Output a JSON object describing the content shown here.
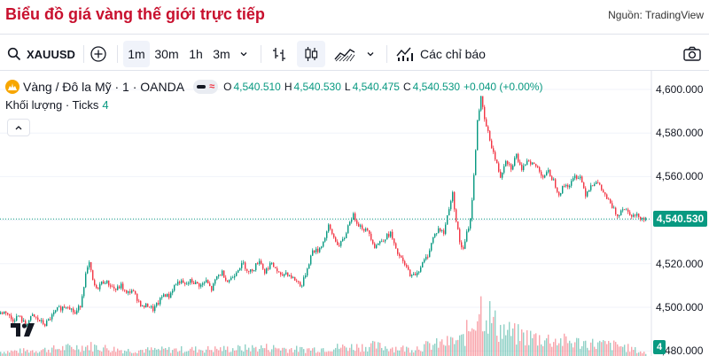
{
  "header": {
    "title": "Biểu đồ giá vàng thế giới trực tiếp",
    "source": "Nguồn: TradingView"
  },
  "toolbar": {
    "symbol": "XAUUSD",
    "intervals": [
      "1m",
      "30m",
      "1h",
      "3m"
    ],
    "active_interval": "1m",
    "indicators_label": "Các chỉ báo",
    "icons": [
      "search-icon",
      "add-symbol-icon",
      "chevron-down-icon",
      "bar-chart-icon",
      "candlestick-icon",
      "area-chart-icon",
      "indicators-icon",
      "camera-icon"
    ]
  },
  "legend": {
    "instrument": "Vàng / Đô la Mỹ · 1 · OANDA",
    "open_key": "O",
    "open": "4,540.510",
    "high_key": "H",
    "high": "4,540.530",
    "low_key": "L",
    "low": "4,540.475",
    "close_key": "C",
    "close": "4,540.530",
    "change": "+0.040 (+0.00%)",
    "volume_label": "Khối lượng · Ticks",
    "volume_value": "4"
  },
  "colors": {
    "up": "#089981",
    "down": "#f23645",
    "title": "#c8102e",
    "brand": "#f7a600"
  },
  "chart_data": {
    "type": "candlestick",
    "y_axis_ticks": [
      "4,600.000",
      "4,580.000",
      "4,560.000",
      "4,540.000",
      "4,520.000",
      "4,500.000",
      "4,480.000"
    ],
    "ylim": [
      4480,
      4605
    ],
    "current_price": "4,540.530",
    "current_volume": "4",
    "price_path": [
      [
        0,
        4497
      ],
      [
        8,
        4498
      ],
      [
        15,
        4494
      ],
      [
        22,
        4496
      ],
      [
        30,
        4492
      ],
      [
        38,
        4496
      ],
      [
        45,
        4494
      ],
      [
        52,
        4492
      ],
      [
        60,
        4496
      ],
      [
        66,
        4499
      ],
      [
        72,
        4500
      ],
      [
        78,
        4501
      ],
      [
        86,
        4497
      ],
      [
        92,
        4501
      ],
      [
        98,
        4515
      ],
      [
        102,
        4520
      ],
      [
        106,
        4512
      ],
      [
        110,
        4508
      ],
      [
        115,
        4511
      ],
      [
        120,
        4512
      ],
      [
        126,
        4510
      ],
      [
        132,
        4508
      ],
      [
        138,
        4510
      ],
      [
        144,
        4506
      ],
      [
        150,
        4508
      ],
      [
        156,
        4504
      ],
      [
        162,
        4500
      ],
      [
        168,
        4501
      ],
      [
        174,
        4499
      ],
      [
        180,
        4502
      ],
      [
        186,
        4506
      ],
      [
        192,
        4505
      ],
      [
        198,
        4510
      ],
      [
        204,
        4512
      ],
      [
        210,
        4510
      ],
      [
        216,
        4512
      ],
      [
        222,
        4511
      ],
      [
        228,
        4510
      ],
      [
        234,
        4512
      ],
      [
        240,
        4508
      ],
      [
        246,
        4514
      ],
      [
        252,
        4516
      ],
      [
        258,
        4512
      ],
      [
        264,
        4514
      ],
      [
        270,
        4518
      ],
      [
        276,
        4520
      ],
      [
        282,
        4516
      ],
      [
        288,
        4518
      ],
      [
        294,
        4522
      ],
      [
        300,
        4516
      ],
      [
        306,
        4520
      ],
      [
        312,
        4518
      ],
      [
        318,
        4514
      ],
      [
        324,
        4516
      ],
      [
        330,
        4514
      ],
      [
        336,
        4512
      ],
      [
        342,
        4510
      ],
      [
        348,
        4518
      ],
      [
        354,
        4526
      ],
      [
        360,
        4526
      ],
      [
        366,
        4530
      ],
      [
        372,
        4537
      ],
      [
        378,
        4532
      ],
      [
        384,
        4528
      ],
      [
        390,
        4532
      ],
      [
        396,
        4540
      ],
      [
        400,
        4542
      ],
      [
        406,
        4538
      ],
      [
        412,
        4536
      ],
      [
        418,
        4534
      ],
      [
        424,
        4528
      ],
      [
        430,
        4530
      ],
      [
        436,
        4532
      ],
      [
        442,
        4534
      ],
      [
        448,
        4526
      ],
      [
        454,
        4522
      ],
      [
        460,
        4518
      ],
      [
        466,
        4514
      ],
      [
        472,
        4516
      ],
      [
        478,
        4520
      ],
      [
        484,
        4524
      ],
      [
        490,
        4532
      ],
      [
        496,
        4536
      ],
      [
        502,
        4534
      ],
      [
        508,
        4546
      ],
      [
        512,
        4552
      ],
      [
        516,
        4540
      ],
      [
        520,
        4530
      ],
      [
        524,
        4526
      ],
      [
        528,
        4534
      ],
      [
        532,
        4540
      ],
      [
        536,
        4560
      ],
      [
        540,
        4586
      ],
      [
        544,
        4596
      ],
      [
        548,
        4586
      ],
      [
        552,
        4580
      ],
      [
        556,
        4574
      ],
      [
        560,
        4568
      ],
      [
        566,
        4560
      ],
      [
        572,
        4568
      ],
      [
        578,
        4564
      ],
      [
        584,
        4570
      ],
      [
        590,
        4562
      ],
      [
        596,
        4568
      ],
      [
        602,
        4566
      ],
      [
        608,
        4564
      ],
      [
        614,
        4560
      ],
      [
        620,
        4562
      ],
      [
        626,
        4558
      ],
      [
        632,
        4552
      ],
      [
        638,
        4556
      ],
      [
        644,
        4556
      ],
      [
        650,
        4560
      ],
      [
        656,
        4560
      ],
      [
        662,
        4552
      ],
      [
        668,
        4556
      ],
      [
        674,
        4558
      ],
      [
        680,
        4554
      ],
      [
        686,
        4550
      ],
      [
        692,
        4546
      ],
      [
        698,
        4542
      ],
      [
        704,
        4546
      ],
      [
        710,
        4544
      ],
      [
        716,
        4542
      ],
      [
        722,
        4542
      ],
      [
        728,
        4540.5
      ]
    ],
    "volume_profile": [
      [
        0,
        6
      ],
      [
        40,
        8
      ],
      [
        80,
        12
      ],
      [
        100,
        14
      ],
      [
        140,
        8
      ],
      [
        200,
        9
      ],
      [
        260,
        10
      ],
      [
        300,
        12
      ],
      [
        340,
        9
      ],
      [
        380,
        12
      ],
      [
        420,
        14
      ],
      [
        460,
        10
      ],
      [
        500,
        18
      ],
      [
        520,
        22
      ],
      [
        530,
        40
      ],
      [
        540,
        72
      ],
      [
        550,
        60
      ],
      [
        560,
        40
      ],
      [
        580,
        30
      ],
      [
        600,
        26
      ],
      [
        640,
        20
      ],
      [
        680,
        16
      ],
      [
        700,
        14
      ],
      [
        728,
        4
      ]
    ]
  }
}
